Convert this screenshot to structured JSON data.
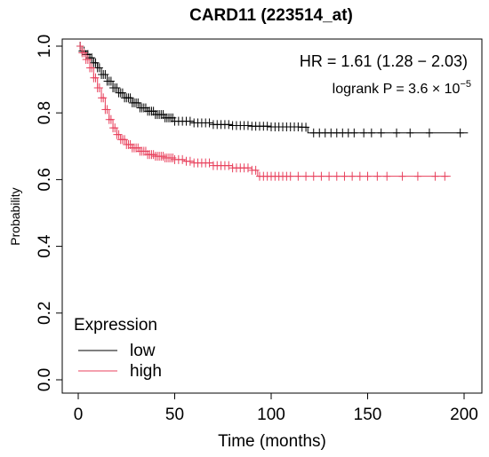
{
  "chart_data": {
    "type": "line",
    "title": "CARD11 (223514_at)",
    "xlabel": "Time (months)",
    "ylabel": "Probability",
    "xlim": [
      0,
      200
    ],
    "ylim": [
      0,
      1
    ],
    "xticks": [
      "0",
      "50",
      "100",
      "150",
      "200"
    ],
    "yticks": [
      "0.0",
      "0.2",
      "0.4",
      "0.6",
      "0.8",
      "1.0"
    ],
    "grid": false,
    "legend": {
      "title": "Expression",
      "placement": "bottom-left",
      "entries": [
        "low",
        "high"
      ]
    },
    "annotations": {
      "hr": "HR = 1.61 (1.28 − 2.03)",
      "logrank_prefix": "logrank  P = 3.6 × 10",
      "logrank_exp": "−5"
    },
    "series": [
      {
        "name": "low",
        "color": "#000000",
        "step": true,
        "x": [
          0,
          2,
          4,
          6,
          8,
          10,
          12,
          15,
          18,
          21,
          24,
          28,
          32,
          36,
          40,
          45,
          50,
          60,
          70,
          80,
          90,
          100,
          115,
          119,
          125,
          150,
          175,
          202
        ],
        "y": [
          1.0,
          0.985,
          0.975,
          0.965,
          0.95,
          0.935,
          0.915,
          0.895,
          0.875,
          0.86,
          0.845,
          0.83,
          0.815,
          0.805,
          0.795,
          0.785,
          0.775,
          0.77,
          0.765,
          0.762,
          0.76,
          0.758,
          0.757,
          0.74,
          0.74,
          0.74,
          0.74,
          0.74
        ],
        "censor_x": [
          1,
          2,
          3,
          4,
          5,
          6,
          7,
          8,
          9,
          10,
          11,
          12,
          13,
          14,
          15,
          16,
          17,
          18,
          19,
          20,
          21,
          22,
          23,
          24,
          25,
          26,
          27,
          28,
          29,
          30,
          31,
          32,
          33,
          34,
          35,
          36,
          37,
          38,
          39,
          40,
          41,
          42,
          43,
          44,
          45,
          46,
          47,
          48,
          49,
          50,
          52,
          54,
          56,
          58,
          60,
          62,
          64,
          66,
          68,
          70,
          72,
          74,
          76,
          78,
          80,
          82,
          84,
          86,
          88,
          90,
          92,
          94,
          96,
          98,
          100,
          102,
          104,
          106,
          108,
          110,
          112,
          114,
          116,
          118,
          122,
          125,
          128,
          131,
          134,
          137,
          140,
          143,
          148,
          152,
          157,
          165,
          172,
          182,
          198
        ]
      },
      {
        "name": "high",
        "color": "#e8405c",
        "step": true,
        "x": [
          0,
          2,
          4,
          6,
          8,
          10,
          12,
          14,
          16,
          18,
          20,
          22,
          25,
          28,
          32,
          36,
          40,
          45,
          50,
          55,
          60,
          70,
          80,
          90,
          93,
          100,
          150,
          193
        ],
        "y": [
          1.0,
          0.98,
          0.96,
          0.935,
          0.905,
          0.875,
          0.845,
          0.81,
          0.78,
          0.755,
          0.735,
          0.72,
          0.705,
          0.695,
          0.685,
          0.675,
          0.67,
          0.665,
          0.66,
          0.655,
          0.65,
          0.642,
          0.635,
          0.628,
          0.61,
          0.61,
          0.61,
          0.61
        ],
        "censor_x": [
          1,
          2,
          3,
          4,
          5,
          6,
          7,
          8,
          9,
          10,
          11,
          12,
          13,
          14,
          15,
          16,
          17,
          18,
          19,
          20,
          21,
          22,
          23,
          24,
          25,
          26,
          27,
          28,
          29,
          30,
          31,
          32,
          33,
          34,
          35,
          36,
          37,
          38,
          39,
          40,
          41,
          42,
          43,
          44,
          45,
          46,
          47,
          48,
          49,
          50,
          52,
          54,
          56,
          58,
          60,
          62,
          64,
          66,
          68,
          70,
          72,
          74,
          76,
          78,
          80,
          82,
          84,
          86,
          88,
          90,
          92,
          94,
          96,
          98,
          100,
          102,
          104,
          106,
          108,
          110,
          114,
          118,
          122,
          126,
          130,
          134,
          138,
          142,
          146,
          150,
          155,
          160,
          168,
          176,
          185,
          190
        ]
      }
    ]
  }
}
